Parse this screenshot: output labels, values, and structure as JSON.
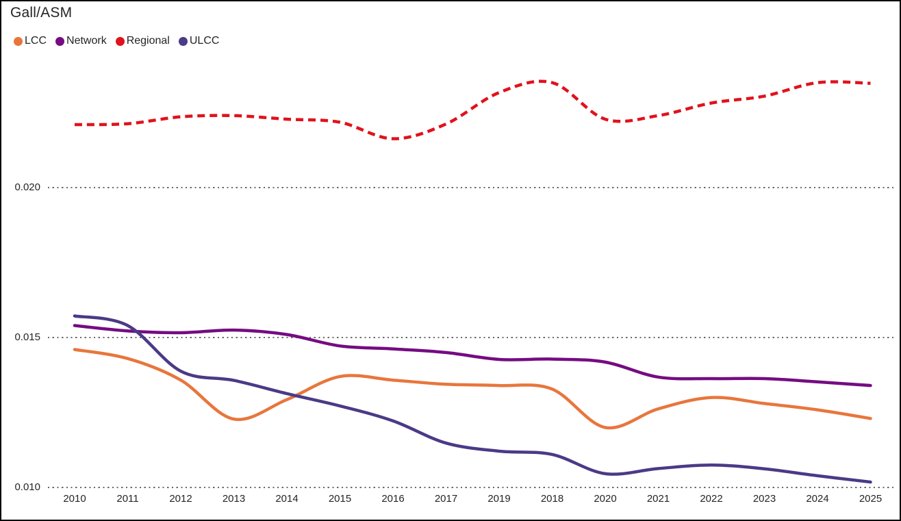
{
  "chart": {
    "title": "Gall/ASM"
  },
  "chart_data": {
    "type": "line",
    "title": "Gall/ASM",
    "categories": [
      "2010",
      "2011",
      "2012",
      "2013",
      "2014",
      "2015",
      "2016",
      "2017",
      "2019",
      "2018",
      "2020",
      "2021",
      "2022",
      "2023",
      "2024",
      "2025"
    ],
    "series": [
      {
        "name": "LCC",
        "color": "#E8763C",
        "line_style": "solid",
        "values": [
          0.0146,
          0.0143,
          0.01358,
          0.01228,
          0.01293,
          0.0137,
          0.01358,
          0.01344,
          0.0134,
          0.01328,
          0.012,
          0.01262,
          0.013,
          0.0128,
          0.01259,
          0.0123
        ]
      },
      {
        "name": "Network",
        "color": "#750C82",
        "line_style": "solid",
        "values": [
          0.0154,
          0.01522,
          0.01516,
          0.01525,
          0.0151,
          0.01472,
          0.01462,
          0.0145,
          0.01427,
          0.01428,
          0.01418,
          0.01368,
          0.01363,
          0.01363,
          0.01352,
          0.0134
        ]
      },
      {
        "name": "Regional",
        "color": "#E0121C",
        "line_style": "dashed",
        "values": [
          0.0221,
          0.02213,
          0.02236,
          0.0224,
          0.02228,
          0.02218,
          0.02163,
          0.02212,
          0.02317,
          0.0235,
          0.02228,
          0.0224,
          0.02282,
          0.02305,
          0.0235,
          0.02348
        ]
      },
      {
        "name": "ULCC",
        "color": "#4B3A86",
        "line_style": "solid",
        "values": [
          0.01572,
          0.0154,
          0.01388,
          0.01357,
          0.01313,
          0.01272,
          0.01222,
          0.01148,
          0.01121,
          0.0111,
          0.01046,
          0.01063,
          0.01075,
          0.01062,
          0.01039,
          0.01018
        ]
      }
    ],
    "xlabel": "",
    "ylabel": "Gall/ASM",
    "yticks": [
      0.02,
      0.015,
      0.01
    ],
    "ytick_labels": [
      "0.020",
      "0.015",
      "0.010"
    ],
    "ylim": [
      0.0098,
      0.0243
    ],
    "grid": "horizontal-dotted",
    "legend_position": "top-left"
  },
  "colors": {
    "text": "#252423",
    "gridline": "#696969",
    "border": "#000000",
    "background": "#FFFFFF"
  }
}
